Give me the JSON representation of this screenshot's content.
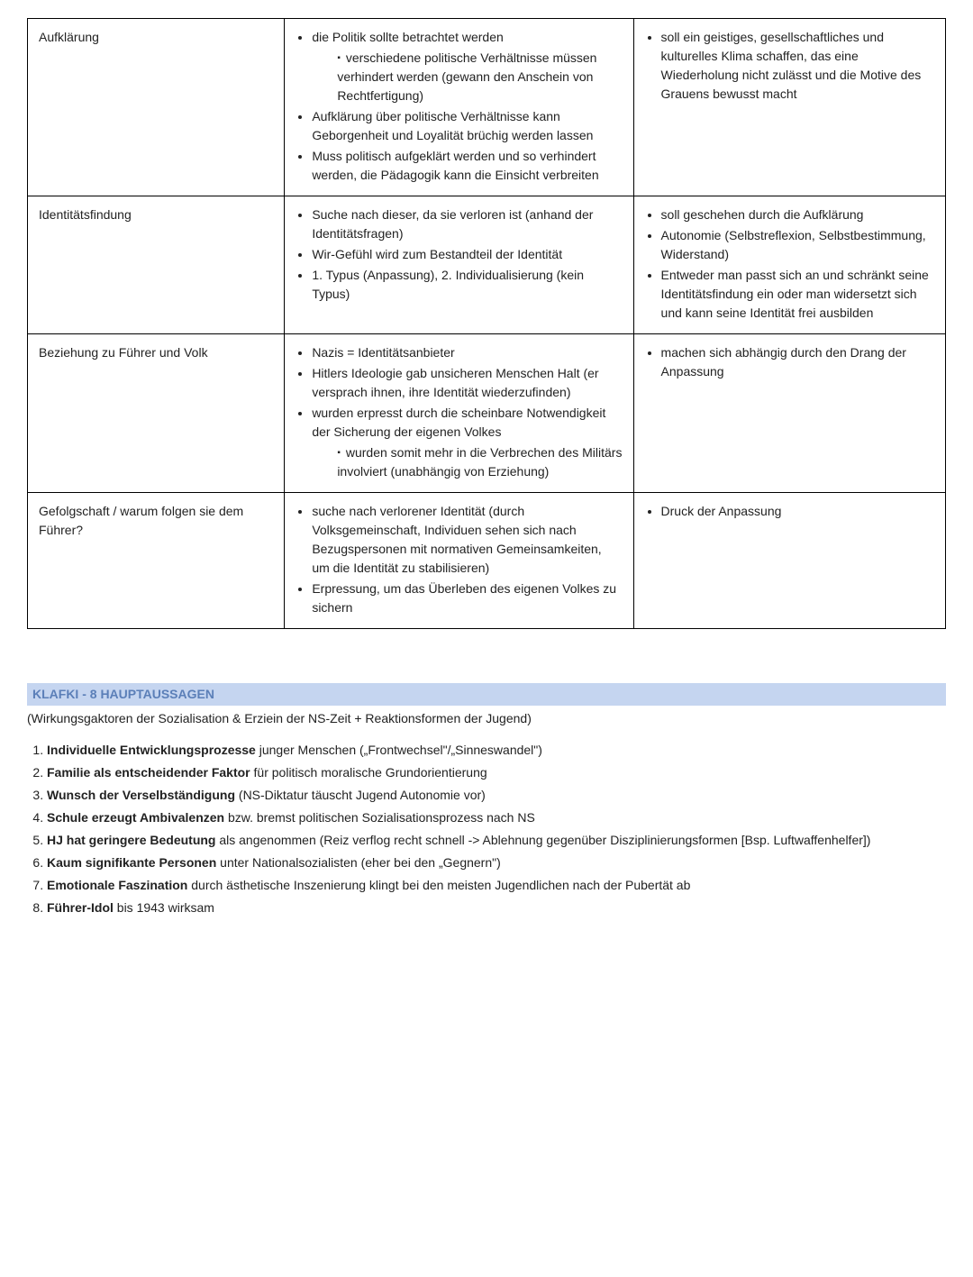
{
  "table": {
    "rows": [
      {
        "label": "Aufklärung",
        "col2": {
          "bullets": [
            "die Politik sollte betrachtet werden",
            "Aufklärung über politische Verhältnisse kann Geborgenheit und Loyalität brüchig werden lassen",
            "Muss politisch aufgeklärt werden und so verhindert werden, die Pädagogik kann die Einsicht verbreiten"
          ],
          "sub_after_0": [
            "verschiedene politische Verhältnisse müssen verhindert werden (gewann den Anschein von Rechtfertigung)"
          ]
        },
        "col3": {
          "bullets": [
            "soll ein geistiges, gesellschaftliches und kulturelles Klima schaffen, das eine Wiederholung nicht zulässt und die Motive des Grauens bewusst macht"
          ]
        }
      },
      {
        "label": "Identitätsfindung",
        "col2": {
          "bullets": [
            "Suche nach dieser, da sie verloren ist (anhand der Identitätsfragen)",
            "Wir-Gefühl wird zum Bestandteil der Identität",
            "1. Typus (Anpassung), 2. Individualisierung (kein Typus)"
          ]
        },
        "col3": {
          "bullets": [
            "soll geschehen durch die Aufklärung",
            "Autonomie (Selbstreflexion, Selbstbestimmung, Widerstand)",
            "Entweder man passt sich an und schränkt seine Identitätsfindung ein oder man widersetzt sich und kann seine Identität frei ausbilden"
          ],
          "hang_second": true
        }
      },
      {
        "label": "Beziehung zu Führer und Volk",
        "col2": {
          "bullets": [
            "Nazis = Identitätsanbieter",
            "Hitlers Ideologie gab unsicheren Menschen Halt (er versprach ihnen, ihre Identität wiederzufinden)",
            "wurden erpresst durch die scheinbare Notwendigkeit der Sicherung der eigenen Volkes"
          ],
          "sub_after_2": [
            "wurden somit mehr in die Verbrechen des Militärs involviert (unabhängig von Erziehung)"
          ]
        },
        "col3": {
          "bullets": [
            "machen sich abhängig durch den Drang der Anpassung"
          ]
        }
      },
      {
        "label": "Gefolgschaft / warum folgen sie dem Führer?",
        "col2": {
          "bullets": [
            "suche nach verlorener Identität (durch Volksgemeinschaft, Individuen sehen sich nach Bezugspersonen mit normativen Gemeinsamkeiten, um die Identität zu stabilisieren)",
            "Erpressung, um das Überleben des eigenen Volkes zu sichern"
          ]
        },
        "col3": {
          "bullets": [
            "Druck der Anpassung"
          ]
        }
      }
    ]
  },
  "section": {
    "heading": "KLAFKI - 8 HAUPTAUSSAGEN",
    "subtitle": "(Wirkungsgaktoren der Sozialisation & Erziein der NS-Zeit + Reaktionsformen der Jugend)",
    "items": [
      {
        "bold": "Individuelle Entwicklungsprozesse",
        "rest": " junger Menschen („Frontwechsel\"/„Sinneswandel\")"
      },
      {
        "bold": "Familie als entscheidender Faktor",
        "rest": " für politisch moralische Grundorientierung"
      },
      {
        "bold": "Wunsch der Verselbständigung",
        "rest": " (NS-Diktatur täuscht Jugend Autonomie vor)"
      },
      {
        "bold": "Schule erzeugt Ambivalenzen",
        "rest": " bzw. bremst politischen Sozialisationsprozess nach NS"
      },
      {
        "bold": "HJ hat geringere Bedeutung",
        "rest": " als angenommen (Reiz verflog recht schnell -> Ablehnung gegenüber Disziplinierungsformen [Bsp. Luftwaffenhelfer])"
      },
      {
        "bold": "Kaum signifikante Personen",
        "rest": " unter Nationalsozialisten (eher bei den „Gegnern\")"
      },
      {
        "bold": "Emotionale Faszination",
        "rest": " durch ästhetische Inszenierung klingt bei den meisten Jugendlichen nach der Pubertät ab"
      },
      {
        "bold": "Führer-Idol",
        "rest": " bis 1943 wirksam"
      }
    ]
  }
}
